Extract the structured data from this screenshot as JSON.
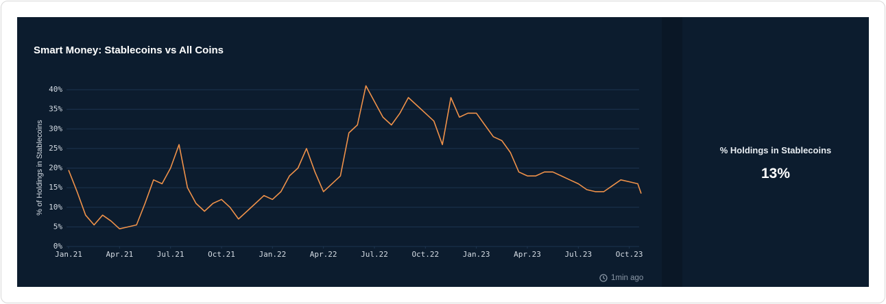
{
  "chart_data": {
    "type": "line",
    "title": "Smart Money: Stablecoins vs All Coins",
    "y_label": "% of Holdings in Stablecoins",
    "x": [
      0,
      0.5,
      1,
      1.5,
      2,
      2.5,
      3,
      3.5,
      4,
      4.5,
      5,
      5.5,
      6,
      6.5,
      7,
      7.5,
      8,
      8.5,
      9,
      9.5,
      10,
      10.5,
      11,
      11.5,
      12,
      12.5,
      13,
      13.5,
      14,
      14.5,
      15,
      15.5,
      16,
      16.5,
      17,
      17.5,
      18,
      18.5,
      19,
      19.5,
      20,
      20.5,
      21,
      21.5,
      22,
      22.5,
      23,
      23.5,
      24,
      24.5,
      25,
      25.5,
      26,
      26.5,
      27,
      27.5,
      28,
      28.5,
      29,
      29.5,
      30,
      30.5,
      31,
      31.5,
      32,
      32.5,
      33,
      33.5,
      33.7
    ],
    "series": [
      {
        "name": "% Holdings in Stablecoins",
        "color": "#f0924a",
        "values": [
          19.5,
          14,
          8,
          5.5,
          8,
          6.5,
          4.5,
          5,
          5.5,
          11,
          17,
          16,
          20,
          26,
          15,
          11,
          9,
          11,
          12,
          10,
          7,
          9,
          11,
          13,
          12,
          14,
          18,
          20,
          25,
          19,
          14,
          16,
          18,
          29,
          31,
          41,
          37,
          33,
          31,
          34,
          38,
          36,
          34,
          32,
          26,
          38,
          33,
          34,
          34,
          31,
          28,
          27,
          24,
          19,
          18,
          18,
          19,
          19,
          18,
          17,
          16,
          14.5,
          14,
          14,
          15.5,
          17,
          16.5,
          16,
          13.5
        ]
      }
    ],
    "xlim": [
      0,
      33.7
    ],
    "xticks": [
      {
        "value": 0,
        "label": "Jan.21"
      },
      {
        "value": 3,
        "label": "Apr.21"
      },
      {
        "value": 6,
        "label": "Jul.21"
      },
      {
        "value": 9,
        "label": "Oct.21"
      },
      {
        "value": 12,
        "label": "Jan.22"
      },
      {
        "value": 15,
        "label": "Apr.22"
      },
      {
        "value": 18,
        "label": "Jul.22"
      },
      {
        "value": 21,
        "label": "Oct.22"
      },
      {
        "value": 24,
        "label": "Jan.23"
      },
      {
        "value": 27,
        "label": "Apr.23"
      },
      {
        "value": 30,
        "label": "Jul.23"
      },
      {
        "value": 33,
        "label": "Oct.23"
      }
    ],
    "ylim": [
      0,
      40
    ],
    "yticks": [
      {
        "value": 0,
        "label": "0%"
      },
      {
        "value": 5,
        "label": "5%"
      },
      {
        "value": 10,
        "label": "10%"
      },
      {
        "value": 15,
        "label": "15%"
      },
      {
        "value": 20,
        "label": "20%"
      },
      {
        "value": 25,
        "label": "25%"
      },
      {
        "value": 30,
        "label": "30%"
      },
      {
        "value": 35,
        "label": "35%"
      },
      {
        "value": 40,
        "label": "40%"
      }
    ],
    "grid": true
  },
  "stat": {
    "label": "% Holdings in Stablecoins",
    "value": "13%"
  },
  "status": "1min ago"
}
